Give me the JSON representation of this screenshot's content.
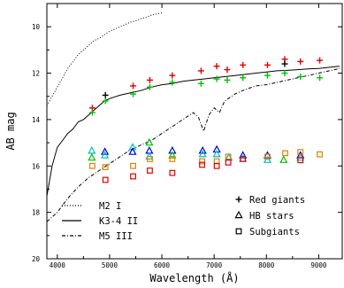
{
  "chart_data": {
    "type": "scatter",
    "title": "",
    "xlabel": "Wavelength (Å)",
    "ylabel": "AB mag",
    "xlim": [
      3800,
      9450
    ],
    "ylim": [
      20,
      9
    ],
    "y_inverted": true,
    "grid": false,
    "x_ticks": [
      4000,
      5000,
      6000,
      7000,
      8000,
      9000
    ],
    "x_tick_labels": [
      "4000",
      "5000",
      "6000",
      "7000",
      "8000",
      "9000"
    ],
    "y_ticks": [
      10,
      12,
      14,
      16,
      18,
      20
    ],
    "y_tick_labels": [
      "10",
      "12",
      "14",
      "16",
      "18",
      "20"
    ],
    "legend_position": "lower-right",
    "spectra_legend_position": "lower-left",
    "spectra": [
      {
        "name": "M2 I",
        "line_style": "dotted",
        "x": [
          3800,
          3900,
          4000,
          4100,
          4200,
          4300,
          4400,
          4500,
          4600,
          4700,
          4800,
          4900,
          5000,
          5100,
          5200,
          5300,
          5400,
          5500,
          5600,
          5700,
          5800,
          5900,
          6000
        ],
        "y": [
          13.4,
          13.0,
          12.6,
          12.2,
          11.8,
          11.5,
          11.2,
          11.0,
          10.8,
          10.6,
          10.5,
          10.35,
          10.2,
          10.1,
          10.0,
          9.9,
          9.8,
          9.75,
          9.65,
          9.6,
          9.5,
          9.45,
          9.4
        ]
      },
      {
        "name": "K3-4 II",
        "line_style": "solid",
        "x": [
          3800,
          3900,
          4000,
          4100,
          4200,
          4300,
          4400,
          4500,
          4600,
          4700,
          4800,
          4900,
          5000,
          5200,
          5400,
          5600,
          5800,
          6000,
          6200,
          6400,
          6600,
          6800,
          7000,
          7200,
          7400,
          7600,
          7800,
          8000,
          8200,
          8400,
          8600,
          8800,
          9000,
          9200,
          9400
        ],
        "y": [
          17.3,
          16.0,
          15.2,
          14.9,
          14.6,
          14.4,
          14.1,
          14.0,
          13.8,
          13.6,
          13.4,
          13.2,
          13.1,
          12.95,
          12.85,
          12.75,
          12.6,
          12.5,
          12.45,
          12.35,
          12.3,
          12.25,
          12.2,
          12.15,
          12.1,
          12.05,
          12.0,
          11.95,
          11.9,
          11.88,
          11.85,
          11.82,
          11.8,
          11.75,
          11.7
        ]
      },
      {
        "name": "M5 III",
        "line_style": "dash-dot",
        "x": [
          3800,
          3900,
          4000,
          4200,
          4400,
          4600,
          4800,
          5000,
          5200,
          5400,
          5600,
          5800,
          6000,
          6200,
          6400,
          6600,
          6700,
          6800,
          6900,
          7000,
          7100,
          7200,
          7400,
          7600,
          7800,
          8000,
          8200,
          8400,
          8600,
          8800,
          9000,
          9200,
          9400
        ],
        "y": [
          18.4,
          18.2,
          18.0,
          17.4,
          16.9,
          16.5,
          16.2,
          15.9,
          15.6,
          15.3,
          15.1,
          14.9,
          14.6,
          14.3,
          14.0,
          13.7,
          13.9,
          14.5,
          13.8,
          13.5,
          13.7,
          13.2,
          12.9,
          12.7,
          12.55,
          12.5,
          12.4,
          12.3,
          12.2,
          12.1,
          12.0,
          11.9,
          11.8
        ]
      }
    ],
    "series": [
      {
        "name": "Red giants",
        "marker": "plus",
        "colors": [
          "#e00000",
          "#00c000"
        ],
        "points": [
          {
            "x": 4670,
            "y": 13.5,
            "color": "#e00000"
          },
          {
            "x": 4670,
            "y": 13.7,
            "color": "#00c000"
          },
          {
            "x": 4920,
            "y": 12.95,
            "color": "#000000"
          },
          {
            "x": 4920,
            "y": 13.2,
            "color": "#00c000"
          },
          {
            "x": 5450,
            "y": 12.55,
            "color": "#e00000"
          },
          {
            "x": 5450,
            "y": 12.9,
            "color": "#00c000"
          },
          {
            "x": 5770,
            "y": 12.3,
            "color": "#e00000"
          },
          {
            "x": 5770,
            "y": 12.6,
            "color": "#00c000"
          },
          {
            "x": 6200,
            "y": 12.1,
            "color": "#e00000"
          },
          {
            "x": 6200,
            "y": 12.4,
            "color": "#00c000"
          },
          {
            "x": 6750,
            "y": 11.9,
            "color": "#e00000"
          },
          {
            "x": 6750,
            "y": 12.45,
            "color": "#00c000"
          },
          {
            "x": 7050,
            "y": 11.7,
            "color": "#e00000"
          },
          {
            "x": 7050,
            "y": 12.25,
            "color": "#00c000"
          },
          {
            "x": 7250,
            "y": 11.85,
            "color": "#e00000"
          },
          {
            "x": 7250,
            "y": 12.3,
            "color": "#00c000"
          },
          {
            "x": 7550,
            "y": 11.65,
            "color": "#e00000"
          },
          {
            "x": 7550,
            "y": 12.2,
            "color": "#00c000"
          },
          {
            "x": 8020,
            "y": 11.65,
            "color": "#e00000"
          },
          {
            "x": 8020,
            "y": 12.1,
            "color": "#00c000"
          },
          {
            "x": 8350,
            "y": 11.4,
            "color": "#e00000"
          },
          {
            "x": 8350,
            "y": 11.6,
            "color": "#000000"
          },
          {
            "x": 8350,
            "y": 12.0,
            "color": "#00c000"
          },
          {
            "x": 8650,
            "y": 11.5,
            "color": "#e00000"
          },
          {
            "x": 8650,
            "y": 12.15,
            "color": "#00c000"
          },
          {
            "x": 9020,
            "y": 11.45,
            "color": "#e00000"
          },
          {
            "x": 9020,
            "y": 12.2,
            "color": "#00c000"
          }
        ]
      },
      {
        "name": "HB stars",
        "marker": "triangle",
        "colors": [
          "#0000e0",
          "#00c0c0",
          "#00c000"
        ],
        "points": [
          {
            "x": 4660,
            "y": 15.35,
            "color": "#00c0c0"
          },
          {
            "x": 4660,
            "y": 15.65,
            "color": "#00c000"
          },
          {
            "x": 4910,
            "y": 15.4,
            "color": "#0000e0"
          },
          {
            "x": 4910,
            "y": 15.55,
            "color": "#00c0c0"
          },
          {
            "x": 5440,
            "y": 15.2,
            "color": "#00c0c0"
          },
          {
            "x": 5440,
            "y": 15.4,
            "color": "#0000e0"
          },
          {
            "x": 5760,
            "y": 15.0,
            "color": "#00c000"
          },
          {
            "x": 5760,
            "y": 15.35,
            "color": "#0000e0"
          },
          {
            "x": 5760,
            "y": 15.6,
            "color": "#00c0c0"
          },
          {
            "x": 6200,
            "y": 15.35,
            "color": "#0000e0"
          },
          {
            "x": 6200,
            "y": 15.55,
            "color": "#00c000"
          },
          {
            "x": 6780,
            "y": 15.35,
            "color": "#0000e0"
          },
          {
            "x": 6780,
            "y": 15.5,
            "color": "#00c0c0"
          },
          {
            "x": 7050,
            "y": 15.3,
            "color": "#0000e0"
          },
          {
            "x": 7050,
            "y": 15.5,
            "color": "#00c0c0"
          },
          {
            "x": 7280,
            "y": 15.65,
            "color": "#00c0c0"
          },
          {
            "x": 7550,
            "y": 15.55,
            "color": "#0000e0"
          },
          {
            "x": 7550,
            "y": 15.7,
            "color": "#00c0c0"
          },
          {
            "x": 8020,
            "y": 15.55,
            "color": "#0000e0"
          },
          {
            "x": 8020,
            "y": 15.75,
            "color": "#00c0c0"
          },
          {
            "x": 8330,
            "y": 15.75,
            "color": "#00c000"
          },
          {
            "x": 8650,
            "y": 15.55,
            "color": "#0000e0"
          },
          {
            "x": 8650,
            "y": 15.65,
            "color": "#00c0c0"
          }
        ]
      },
      {
        "name": "Subgiants",
        "marker": "square",
        "colors": [
          "#e00000",
          "#e08000"
        ],
        "points": [
          {
            "x": 4670,
            "y": 16.0,
            "color": "#e08000"
          },
          {
            "x": 4920,
            "y": 16.05,
            "color": "#e08000"
          },
          {
            "x": 4920,
            "y": 16.6,
            "color": "#e00000"
          },
          {
            "x": 5450,
            "y": 16.0,
            "color": "#e08000"
          },
          {
            "x": 5450,
            "y": 16.45,
            "color": "#e00000"
          },
          {
            "x": 5770,
            "y": 15.7,
            "color": "#e08000"
          },
          {
            "x": 5770,
            "y": 16.2,
            "color": "#e00000"
          },
          {
            "x": 6200,
            "y": 15.7,
            "color": "#e08000"
          },
          {
            "x": 6200,
            "y": 16.3,
            "color": "#e00000"
          },
          {
            "x": 6770,
            "y": 15.8,
            "color": "#e08000"
          },
          {
            "x": 6770,
            "y": 15.95,
            "color": "#e00000"
          },
          {
            "x": 7050,
            "y": 15.8,
            "color": "#e08000"
          },
          {
            "x": 7050,
            "y": 16.0,
            "color": "#e00000"
          },
          {
            "x": 7270,
            "y": 15.6,
            "color": "#e08000"
          },
          {
            "x": 7270,
            "y": 15.85,
            "color": "#e00000"
          },
          {
            "x": 7550,
            "y": 15.7,
            "color": "#e00000"
          },
          {
            "x": 8020,
            "y": 15.6,
            "color": "#e08000"
          },
          {
            "x": 8360,
            "y": 15.45,
            "color": "#e08000"
          },
          {
            "x": 8650,
            "y": 15.4,
            "color": "#e08000"
          },
          {
            "x": 8650,
            "y": 15.75,
            "color": "#e00000"
          },
          {
            "x": 9020,
            "y": 15.5,
            "color": "#e08000"
          }
        ]
      }
    ]
  }
}
